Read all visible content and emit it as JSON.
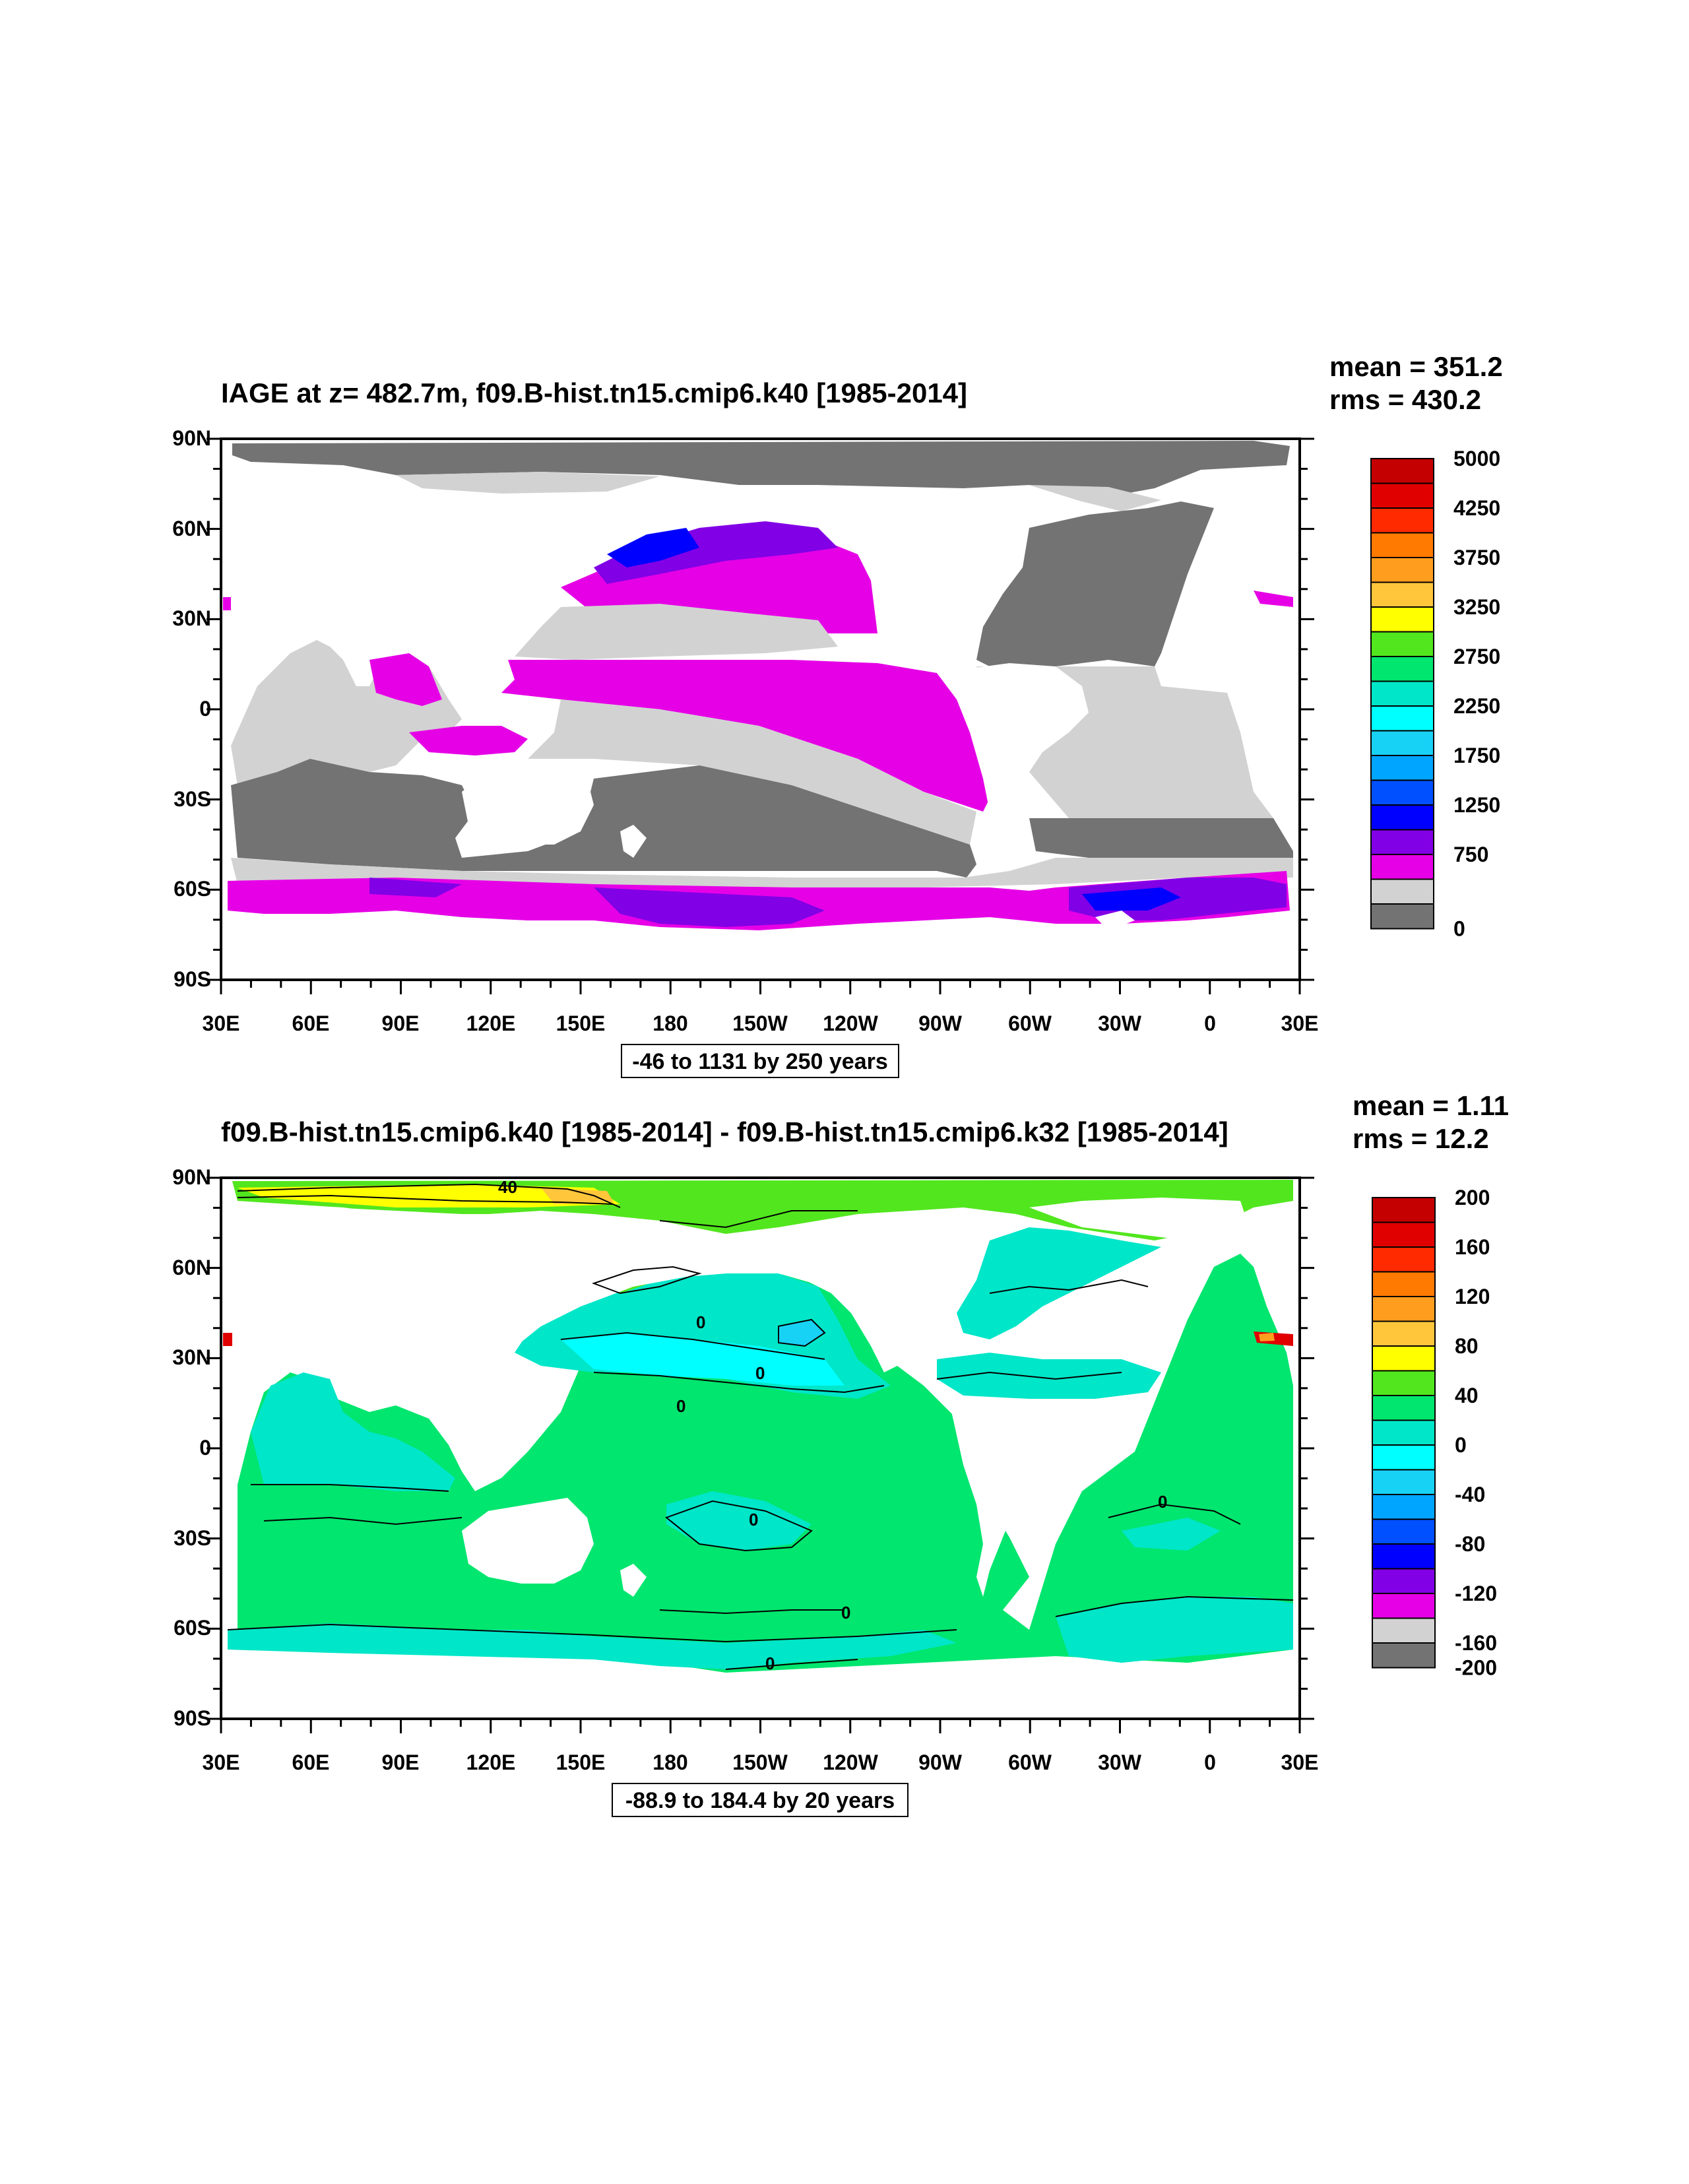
{
  "panel_top": {
    "title": "IAGE at z= 482.7m, f09.B-hist.tn15.cmip6.k40 [1985-2014]",
    "mean": "mean = 351.2",
    "rms": "rms = 430.2",
    "range": "-46 to 1131 by 250 years",
    "colorbar": {
      "labels": [
        "5000",
        "4250",
        "3750",
        "3250",
        "2750",
        "2250",
        "1750",
        "1250",
        "750",
        "0"
      ],
      "colors": [
        "#c40000",
        "#e10000",
        "#ff2a00",
        "#ff7a00",
        "#ff9e1e",
        "#ffc63c",
        "#ffff00",
        "#52e61e",
        "#00e66e",
        "#00e6c8",
        "#00ffff",
        "#18d2f5",
        "#00a5ff",
        "#0050ff",
        "#0000ff",
        "#8200e6",
        "#e600e6",
        "#d2d2d2",
        "#737373"
      ]
    }
  },
  "panel_bottom": {
    "title": "f09.B-hist.tn15.cmip6.k40 [1985-2014] - f09.B-hist.tn15.cmip6.k32 [1985-2014]",
    "mean": "mean = 1.11",
    "rms": "rms = 12.2",
    "range": "-88.9 to 184.4 by 20 years",
    "contour_labels": [
      "40",
      "0",
      "0",
      "0",
      "0",
      "0",
      "0",
      "0"
    ],
    "colorbar": {
      "labels": [
        "200",
        "160",
        "120",
        "80",
        "40",
        "0",
        "-40",
        "-80",
        "-120",
        "-160",
        "-200"
      ],
      "colors": [
        "#c40000",
        "#e10000",
        "#ff2a00",
        "#ff7a00",
        "#ff9e1e",
        "#ffc63c",
        "#ffff00",
        "#52e61e",
        "#00e66e",
        "#00e6c8",
        "#00ffff",
        "#18d2f5",
        "#00a5ff",
        "#0050ff",
        "#0000ff",
        "#8200e6",
        "#e600e6",
        "#d2d2d2",
        "#737373"
      ]
    }
  },
  "axes": {
    "y_labels": [
      "90N",
      "60N",
      "30N",
      "0",
      "30S",
      "60S",
      "90S"
    ],
    "x_labels": [
      "30E",
      "60E",
      "90E",
      "120E",
      "150E",
      "180",
      "150W",
      "120W",
      "90W",
      "60W",
      "30W",
      "0",
      "30E"
    ]
  },
  "colors": {
    "land": "#ffffff",
    "frame": "#000000"
  }
}
